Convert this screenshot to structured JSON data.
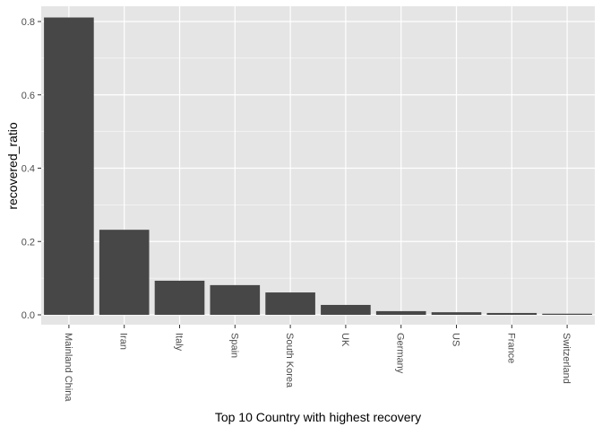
{
  "chart_data": {
    "type": "bar",
    "categories": [
      "Mainland China",
      "Iran",
      "Italy",
      "Spain",
      "South Korea",
      "UK",
      "Germany",
      "US",
      "France",
      "Switzerland"
    ],
    "values": [
      0.811,
      0.232,
      0.093,
      0.081,
      0.061,
      0.027,
      0.01,
      0.007,
      0.005,
      0.003
    ],
    "ylabel": "recovered_ratio",
    "xlabel": "Top 10 Country with highest recovery",
    "yticks": [
      0.0,
      0.2,
      0.4,
      0.6,
      0.8
    ],
    "ytick_labels": [
      "0.0",
      "0.2",
      "0.4",
      "0.6",
      "0.8"
    ],
    "ylim": [
      -0.04,
      0.85
    ],
    "grid": true,
    "colors": {
      "panel": "#E5E5E5",
      "grid": "#FFFFFF",
      "bar": "#474747",
      "text": "#4D4D4D",
      "title": "#000000"
    }
  }
}
